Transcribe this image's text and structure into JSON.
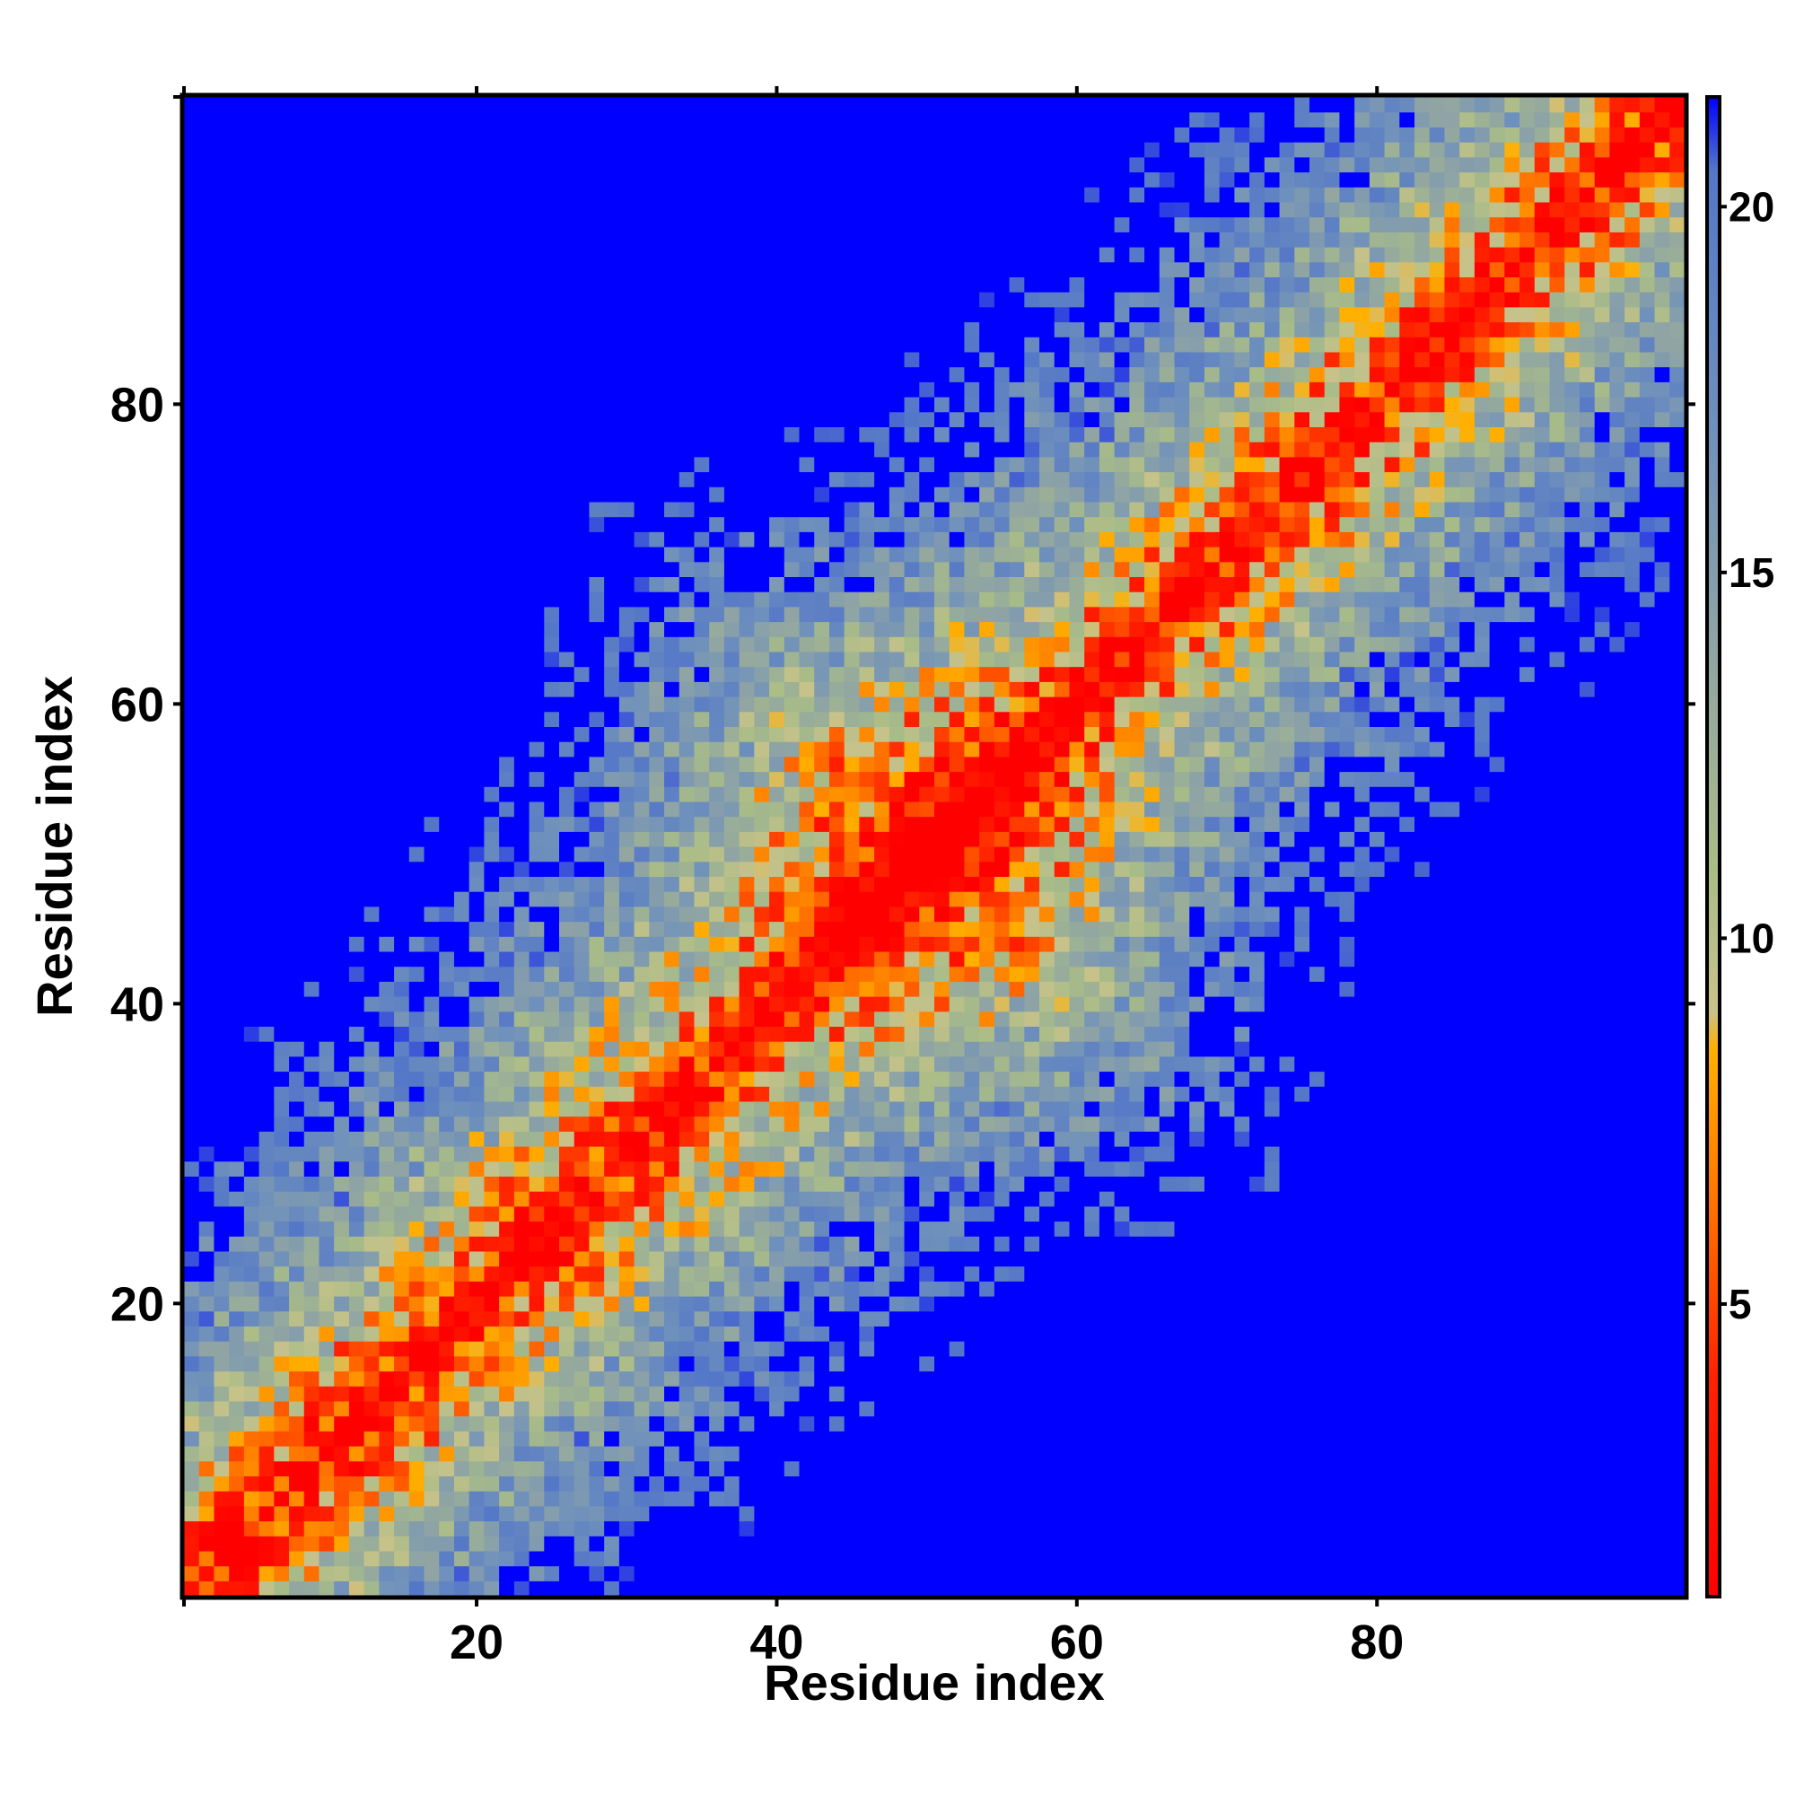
{
  "chart_data": {
    "type": "heatmap",
    "title": "",
    "xlabel": "Residue index",
    "ylabel": "Residue index",
    "xlim": [
      0.5,
      100.5
    ],
    "ylim": [
      0.5,
      100.5
    ],
    "x_ticks": [
      20,
      40,
      60,
      80
    ],
    "x_tick_labels": [
      "20",
      "40",
      "60",
      "80"
    ],
    "y_ticks": [
      20,
      40,
      60,
      80
    ],
    "y_tick_labels": [
      "20",
      "40",
      "60",
      "80"
    ],
    "n_residues": 100,
    "matrix_symmetry": "symmetric along main diagonal; structure mirrored across the anti-diagonal in the displayed image",
    "value_cutoff": 21,
    "above_cutoff_color": "#0000ff",
    "colorbar": {
      "range": [
        1,
        21.5
      ],
      "ticks": [
        5,
        10,
        15,
        20
      ],
      "tick_labels": [
        "5",
        "10",
        "15",
        "20"
      ],
      "stops": [
        {
          "value": 1,
          "color": "#ff0000"
        },
        {
          "value": 4,
          "color": "#ff2200"
        },
        {
          "value": 6.5,
          "color": "#ff7700"
        },
        {
          "value": 8.5,
          "color": "#ffb000"
        },
        {
          "value": 9,
          "color": "#c8c28a"
        },
        {
          "value": 11,
          "color": "#a8bc88"
        },
        {
          "value": 14,
          "color": "#8fa4a4"
        },
        {
          "value": 17,
          "color": "#6e90bc"
        },
        {
          "value": 20.5,
          "color": "#5577c8"
        },
        {
          "value": 21.5,
          "color": "#0000ff"
        }
      ]
    }
  }
}
